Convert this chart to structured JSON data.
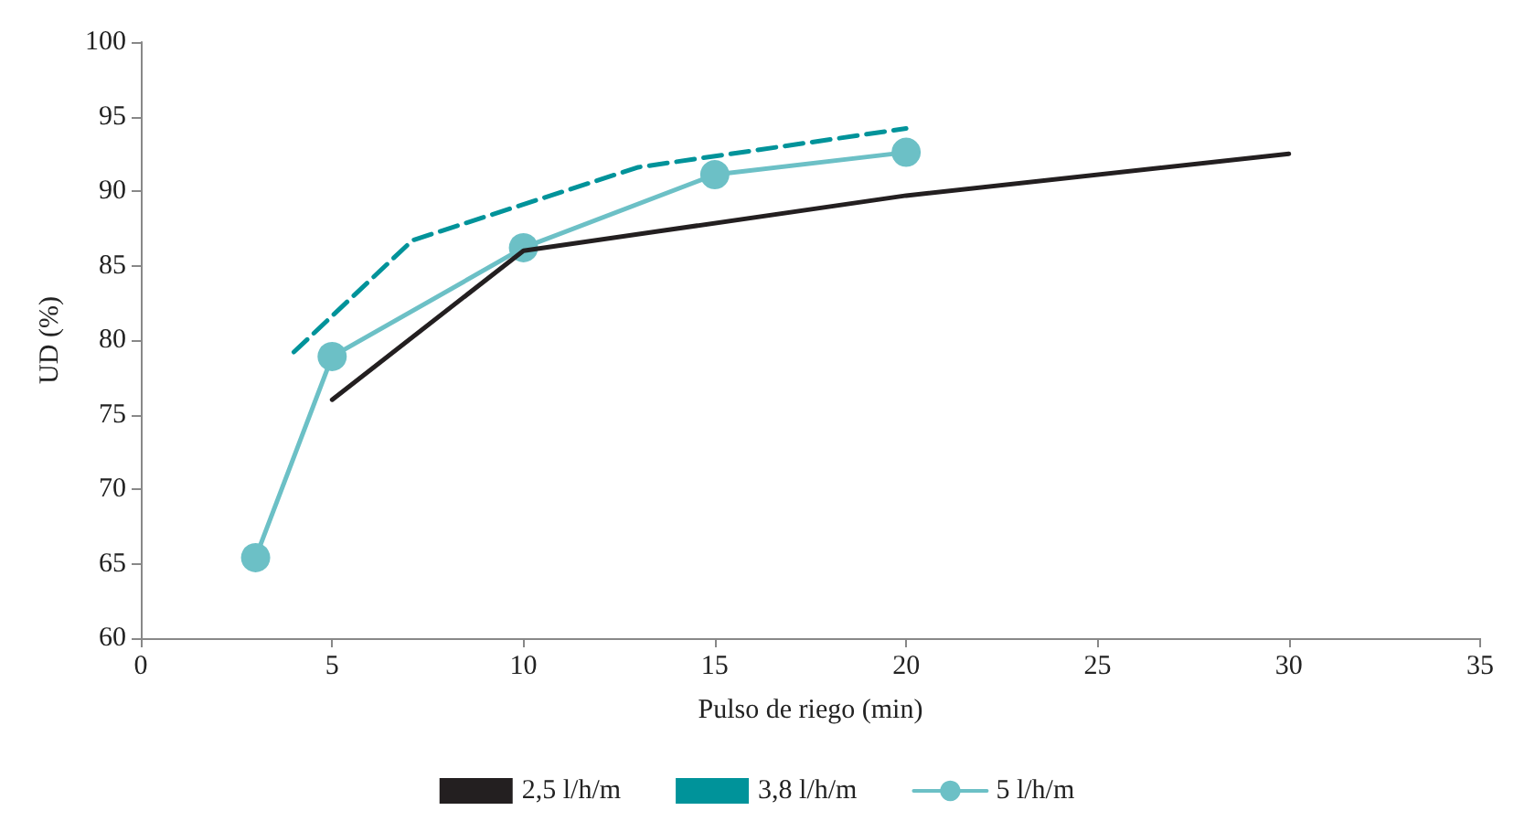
{
  "chart_data": {
    "type": "line",
    "xlabel": "Pulso de riego (min)",
    "ylabel": "UD (%)",
    "xlim": [
      0,
      35
    ],
    "xticks": [
      0,
      5,
      10,
      15,
      20,
      25,
      30,
      35
    ],
    "ylim": [
      60,
      100
    ],
    "yticks": [
      60,
      65,
      70,
      75,
      80,
      85,
      90,
      95,
      100
    ],
    "grid": false,
    "legend": "bottom",
    "series": [
      {
        "name": "2,5 l/h/m",
        "color": "#231f20",
        "x": [
          5,
          10,
          20,
          30
        ],
        "values": [
          76.0,
          86.0,
          89.7,
          92.5
        ],
        "marker": "none",
        "line_style": "solid"
      },
      {
        "name": "3,8 l/h/m",
        "color": "#00939a",
        "x": [
          4,
          7.1,
          13,
          20
        ],
        "values": [
          79.2,
          86.7,
          91.6,
          94.2
        ],
        "marker": "none",
        "line_style": "dashed"
      },
      {
        "name": "5 l/h/m",
        "color": "#6cc0c6",
        "x": [
          3,
          5,
          10,
          15,
          20
        ],
        "values": [
          65.4,
          78.9,
          86.2,
          91.1,
          92.6
        ],
        "marker": "circle",
        "line_style": "solid"
      }
    ]
  }
}
